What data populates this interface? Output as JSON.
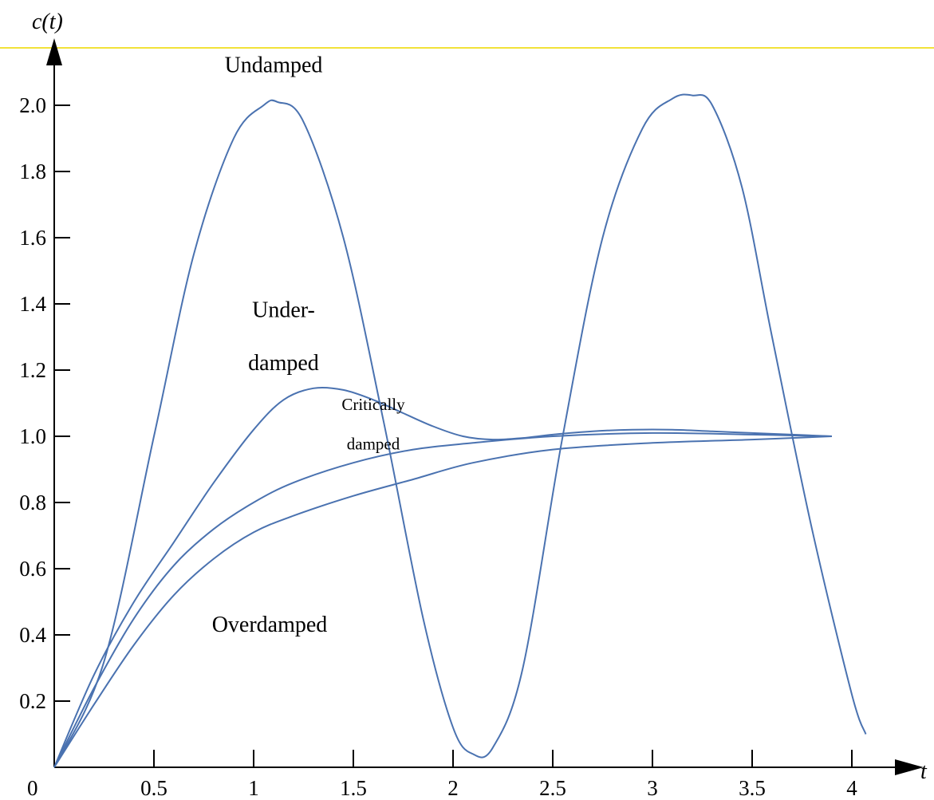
{
  "chart_data": {
    "type": "line",
    "ylabel": "c(t)",
    "xlabel": "t",
    "origin_label": "0",
    "xlim": [
      0,
      4.2
    ],
    "ylim": [
      0,
      2.2
    ],
    "x_ticks": [
      0.5,
      1,
      1.5,
      2,
      2.5,
      3,
      3.5,
      4
    ],
    "x_tick_labels": [
      "0.5",
      "1",
      "1.5",
      "2",
      "2.5",
      "3",
      "3.5",
      "4"
    ],
    "y_ticks": [
      0.2,
      0.4,
      0.6,
      0.8,
      1.0,
      1.2,
      1.4,
      1.6,
      1.8,
      2.0
    ],
    "y_tick_labels": [
      "0.2",
      "0.4",
      "0.6",
      "0.8",
      "1.0",
      "1.2",
      "1.4",
      "1.6",
      "1.8",
      "2.0"
    ],
    "grid": false,
    "line_color": "#4a72b0",
    "series": [
      {
        "x": [
          0,
          0.25,
          0.5,
          0.7,
          0.9,
          1.05,
          1.12,
          1.25,
          1.45,
          1.65,
          1.85,
          2.0,
          2.1,
          2.2,
          2.35,
          2.55,
          2.75,
          2.95,
          3.1,
          3.2,
          3.3,
          3.45,
          3.6,
          3.8,
          4.0,
          4.07
        ],
        "y": [
          0,
          0.32,
          1.0,
          1.55,
          1.9,
          2.0,
          2.01,
          1.95,
          1.6,
          1.05,
          0.45,
          0.12,
          0.04,
          0.06,
          0.3,
          1.0,
          1.6,
          1.93,
          2.02,
          2.03,
          2.0,
          1.75,
          1.3,
          0.72,
          0.22,
          0.1
        ]
      },
      {
        "x": [
          0,
          0.2,
          0.4,
          0.6,
          0.8,
          1.0,
          1.15,
          1.3,
          1.45,
          1.6,
          1.75,
          1.9,
          2.05,
          2.2,
          2.35,
          2.5,
          2.7,
          2.9,
          3.1,
          3.3,
          3.5,
          3.7,
          3.9
        ],
        "y": [
          0,
          0.28,
          0.5,
          0.68,
          0.86,
          1.02,
          1.11,
          1.145,
          1.14,
          1.11,
          1.07,
          1.03,
          1.0,
          0.99,
          0.995,
          1.005,
          1.015,
          1.02,
          1.02,
          1.015,
          1.01,
          1.005,
          1.0
        ]
      },
      {
        "x": [
          0,
          0.2,
          0.4,
          0.6,
          0.8,
          1.0,
          1.2,
          1.5,
          1.8,
          2.1,
          2.5,
          3.0,
          3.5,
          3.9
        ],
        "y": [
          0,
          0.24,
          0.45,
          0.61,
          0.72,
          0.8,
          0.86,
          0.92,
          0.96,
          0.98,
          1.0,
          1.01,
          1.005,
          1.0
        ]
      },
      {
        "x": [
          0,
          0.2,
          0.4,
          0.6,
          0.8,
          1.0,
          1.2,
          1.5,
          1.8,
          2.1,
          2.5,
          3.0,
          3.5,
          3.9
        ],
        "y": [
          0,
          0.19,
          0.37,
          0.52,
          0.63,
          0.71,
          0.76,
          0.82,
          0.87,
          0.92,
          0.96,
          0.98,
          0.99,
          1.0
        ]
      }
    ],
    "annotations": [
      {
        "text": "Undamped",
        "x": 1.1,
        "y": 2.1,
        "size": "large"
      },
      {
        "text": "Under-",
        "x": 1.15,
        "y": 1.36,
        "size": "large"
      },
      {
        "text": "damped",
        "x": 1.15,
        "y": 1.2,
        "size": "large"
      },
      {
        "text": "Critically",
        "x": 1.6,
        "y": 1.08,
        "size": "small"
      },
      {
        "text": "damped",
        "x": 1.6,
        "y": 0.96,
        "size": "small"
      },
      {
        "text": "Overdamped",
        "x": 1.08,
        "y": 0.41,
        "size": "large"
      }
    ]
  }
}
